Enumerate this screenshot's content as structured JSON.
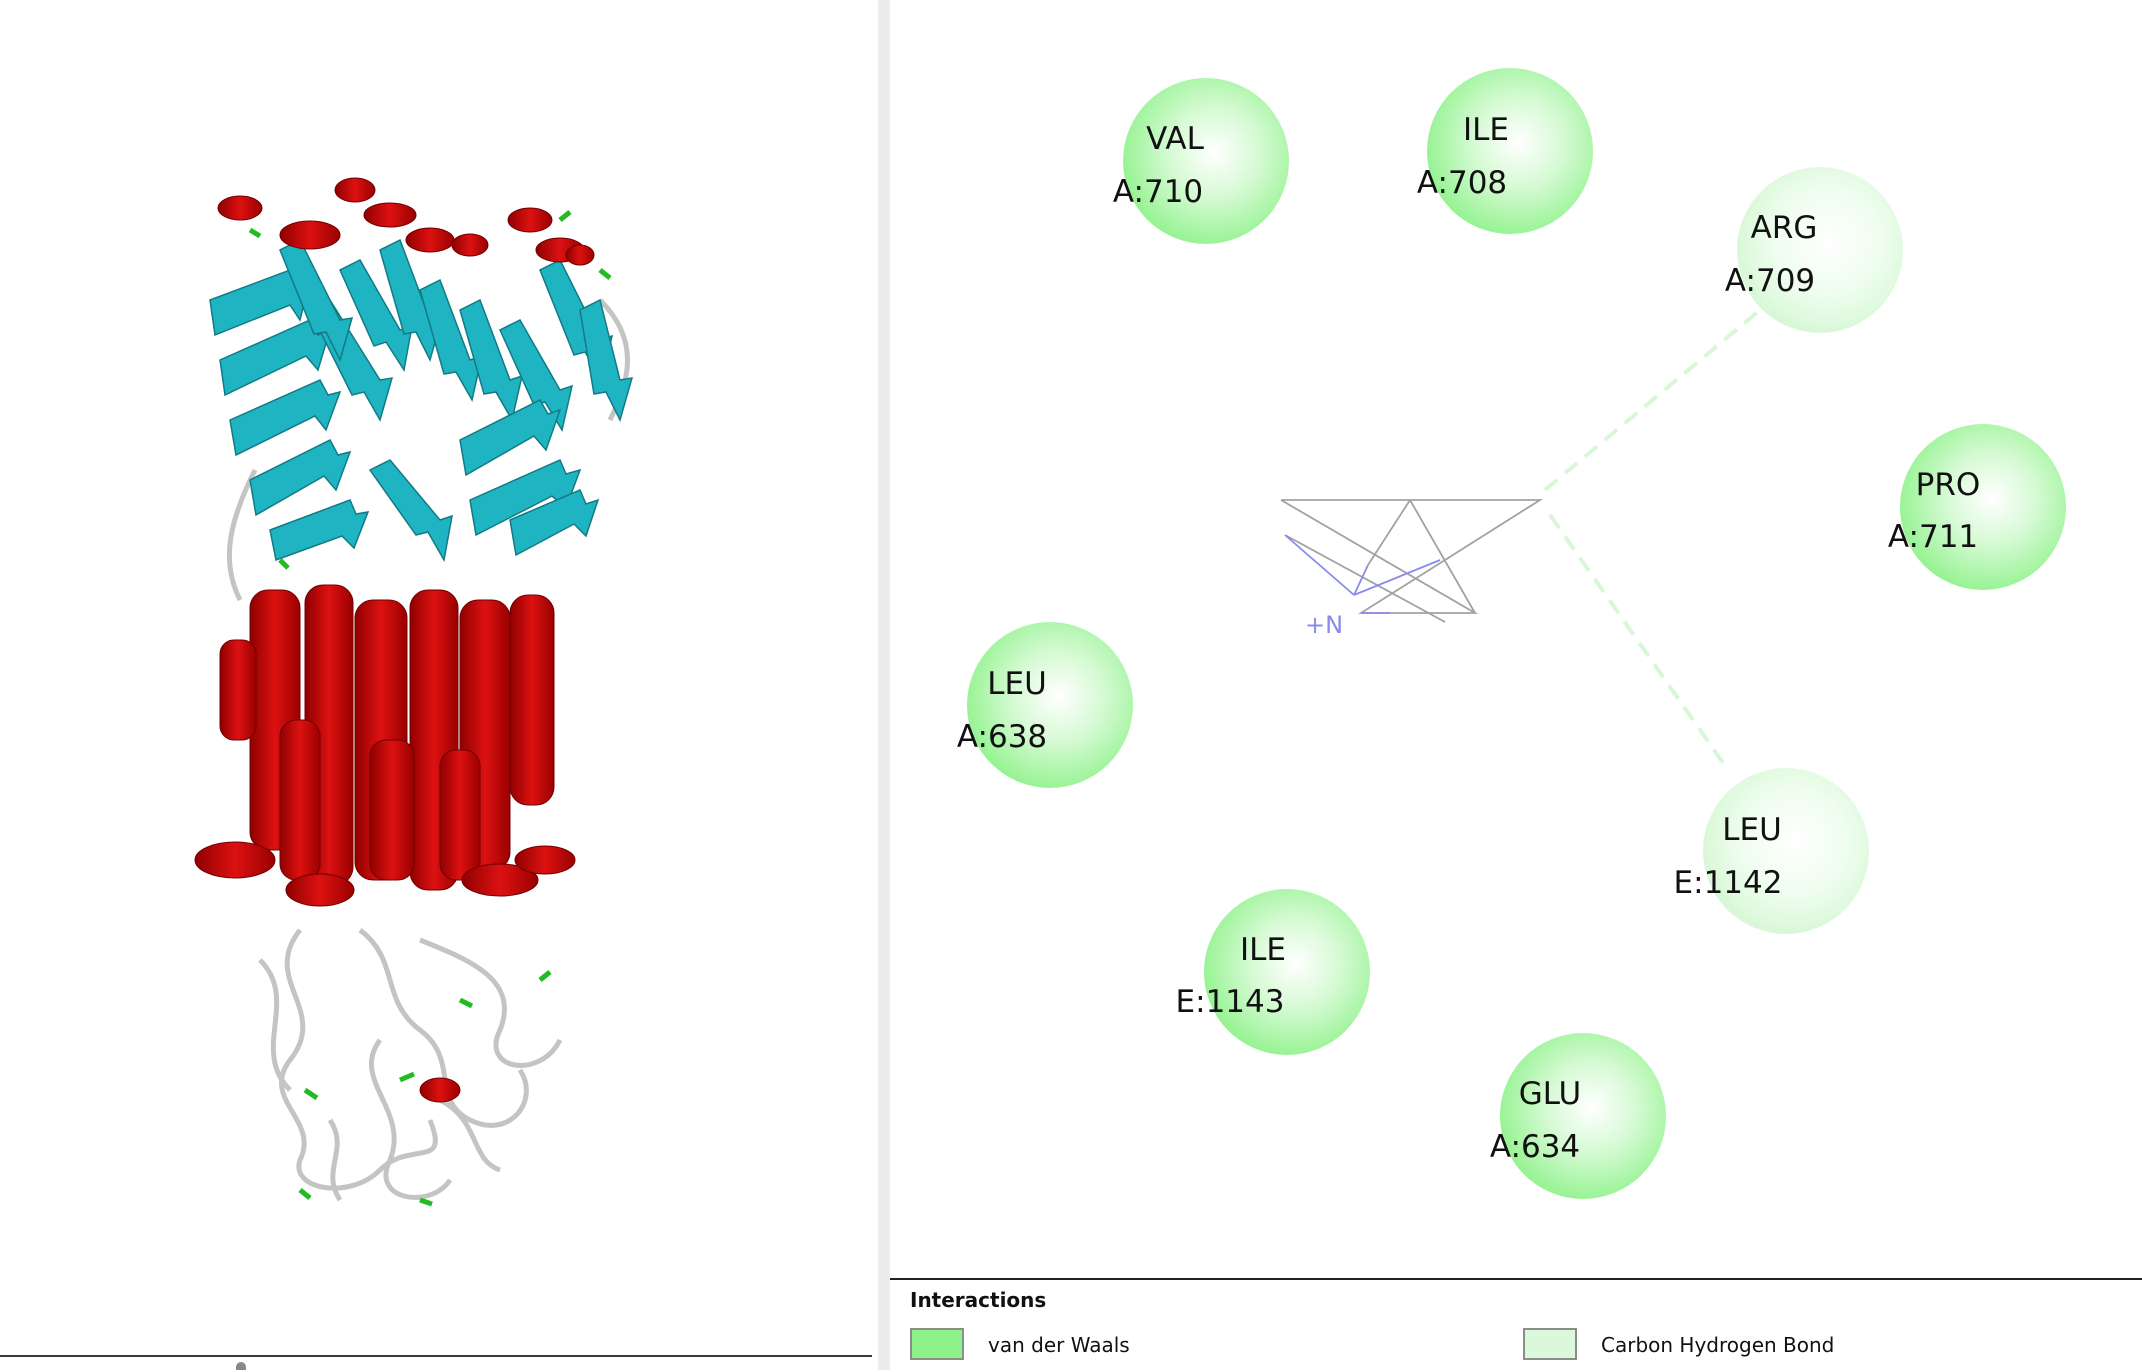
{
  "diagram": {
    "residues": [
      {
        "name": "VAL",
        "id": "A:710",
        "type": "vdw"
      },
      {
        "name": "ILE",
        "id": "A:708",
        "type": "vdw"
      },
      {
        "name": "ARG",
        "id": "A:709",
        "type": "chb"
      },
      {
        "name": "PRO",
        "id": "A:711",
        "type": "vdw"
      },
      {
        "name": "LEU",
        "id": "A:638",
        "type": "vdw"
      },
      {
        "name": "LEU",
        "id": "E:1142",
        "type": "chb"
      },
      {
        "name": "ILE",
        "id": "E:1143",
        "type": "vdw"
      },
      {
        "name": "GLU",
        "id": "A:634",
        "type": "vdw"
      }
    ],
    "ligand_atom_label": "+N"
  },
  "legend": {
    "title": "Interactions",
    "items": [
      {
        "label": "van der Waals",
        "color": "#8ef28a"
      },
      {
        "label": "Carbon Hydrogen Bond",
        "color": "#dbf9da"
      }
    ]
  },
  "colors": {
    "helix": "#cc0000",
    "sheet": "#1fb4c2",
    "turn": "#22bb22",
    "coil": "#c8c8c8"
  }
}
